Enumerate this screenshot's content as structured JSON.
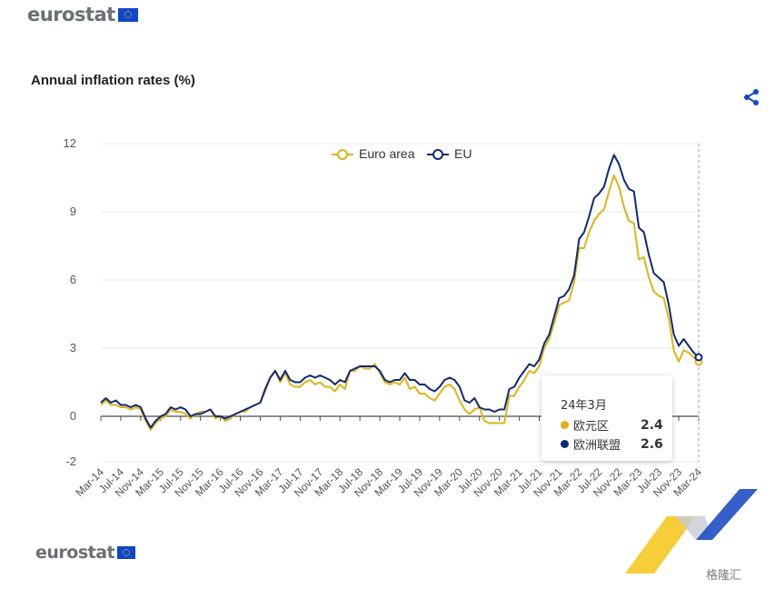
{
  "header": {
    "logo_text": "eurostat"
  },
  "footer": {
    "logo_text": "eurostat"
  },
  "watermark": {
    "text": "格隆汇"
  },
  "colors": {
    "euro_area": "#e0b315",
    "eu": "#0e2978",
    "grid": "#e6e8f0",
    "axis": "#4d4d4d"
  },
  "icons": {
    "share": "share-icon",
    "flag": "eu-flag-icon"
  },
  "chart_data": {
    "type": "line",
    "title": "Annual inflation rates (%)",
    "xlabel": "",
    "ylabel": "",
    "ylim": [
      -2,
      12
    ],
    "yticks": [
      -2,
      0,
      3,
      6,
      9,
      12
    ],
    "grid": true,
    "legend_position": "top",
    "x_tick_labels": [
      "Mar-14",
      "Jul-14",
      "Nov-14",
      "Mar-15",
      "Jul-15",
      "Nov-15",
      "Mar-16",
      "Jul-16",
      "Nov-16",
      "Mar-17",
      "Jul-17",
      "Nov-17",
      "Mar-18",
      "Jul-18",
      "Nov-18",
      "Mar-19",
      "Jul-19",
      "Nov-19",
      "Mar-20",
      "Jul-20",
      "Nov-20",
      "Mar-21",
      "Jul-21",
      "Nov-21",
      "Mar-22",
      "Jul-22",
      "Nov-22",
      "Mar-23",
      "Jul-23",
      "Nov-23",
      "Mar-24"
    ],
    "x": [
      "Mar-14",
      "Apr-14",
      "May-14",
      "Jun-14",
      "Jul-14",
      "Aug-14",
      "Sep-14",
      "Oct-14",
      "Nov-14",
      "Dec-14",
      "Jan-15",
      "Feb-15",
      "Mar-15",
      "Apr-15",
      "May-15",
      "Jun-15",
      "Jul-15",
      "Aug-15",
      "Sep-15",
      "Oct-15",
      "Nov-15",
      "Dec-15",
      "Jan-16",
      "Feb-16",
      "Mar-16",
      "Apr-16",
      "May-16",
      "Jun-16",
      "Jul-16",
      "Aug-16",
      "Sep-16",
      "Oct-16",
      "Nov-16",
      "Dec-16",
      "Jan-17",
      "Feb-17",
      "Mar-17",
      "Apr-17",
      "May-17",
      "Jun-17",
      "Jul-17",
      "Aug-17",
      "Sep-17",
      "Oct-17",
      "Nov-17",
      "Dec-17",
      "Jan-18",
      "Feb-18",
      "Mar-18",
      "Apr-18",
      "May-18",
      "Jun-18",
      "Jul-18",
      "Aug-18",
      "Sep-18",
      "Oct-18",
      "Nov-18",
      "Dec-18",
      "Jan-19",
      "Feb-19",
      "Mar-19",
      "Apr-19",
      "May-19",
      "Jun-19",
      "Jul-19",
      "Aug-19",
      "Sep-19",
      "Oct-19",
      "Nov-19",
      "Dec-19",
      "Jan-20",
      "Feb-20",
      "Mar-20",
      "Apr-20",
      "May-20",
      "Jun-20",
      "Jul-20",
      "Aug-20",
      "Sep-20",
      "Oct-20",
      "Nov-20",
      "Dec-20",
      "Jan-21",
      "Feb-21",
      "Mar-21",
      "Apr-21",
      "May-21",
      "Jun-21",
      "Jul-21",
      "Aug-21",
      "Sep-21",
      "Oct-21",
      "Nov-21",
      "Dec-21",
      "Jan-22",
      "Feb-22",
      "Mar-22",
      "Apr-22",
      "May-22",
      "Jun-22",
      "Jul-22",
      "Aug-22",
      "Sep-22",
      "Oct-22",
      "Nov-22",
      "Dec-22",
      "Jan-23",
      "Feb-23",
      "Mar-23",
      "Apr-23",
      "May-23",
      "Jun-23",
      "Jul-23",
      "Aug-23",
      "Sep-23",
      "Oct-23",
      "Nov-23",
      "Dec-23",
      "Jan-24",
      "Feb-24",
      "Mar-24"
    ],
    "series": [
      {
        "name": "Euro area",
        "color": "#e0b315",
        "values": [
          0.5,
          0.7,
          0.5,
          0.5,
          0.4,
          0.4,
          0.3,
          0.4,
          0.3,
          -0.2,
          -0.6,
          -0.3,
          -0.1,
          0.0,
          0.3,
          0.2,
          0.2,
          0.1,
          -0.1,
          0.1,
          0.2,
          0.2,
          0.3,
          -0.1,
          0.0,
          -0.2,
          -0.1,
          0.1,
          0.2,
          0.2,
          0.4,
          0.5,
          0.6,
          1.1,
          1.7,
          2.0,
          1.5,
          1.9,
          1.4,
          1.3,
          1.3,
          1.5,
          1.6,
          1.4,
          1.5,
          1.3,
          1.3,
          1.1,
          1.4,
          1.2,
          2.0,
          2.0,
          2.2,
          2.1,
          2.1,
          2.3,
          1.9,
          1.5,
          1.4,
          1.5,
          1.4,
          1.7,
          1.2,
          1.3,
          1.0,
          1.0,
          0.8,
          0.7,
          1.0,
          1.3,
          1.4,
          1.2,
          0.7,
          0.3,
          0.1,
          0.3,
          0.4,
          -0.2,
          -0.3,
          -0.3,
          -0.3,
          -0.3,
          0.9,
          0.9,
          1.3,
          1.6,
          2.0,
          1.9,
          2.2,
          3.0,
          3.4,
          4.1,
          4.9,
          5.0,
          5.1,
          5.9,
          7.4,
          7.4,
          8.1,
          8.6,
          8.9,
          9.1,
          9.9,
          10.6,
          10.1,
          9.2,
          8.6,
          8.5,
          6.9,
          7.0,
          6.1,
          5.5,
          5.3,
          5.2,
          4.3,
          2.9,
          2.4,
          2.9,
          2.8,
          2.6,
          2.4
        ]
      },
      {
        "name": "EU",
        "color": "#0e2978",
        "values": [
          0.6,
          0.8,
          0.6,
          0.7,
          0.5,
          0.5,
          0.4,
          0.5,
          0.4,
          -0.1,
          -0.5,
          -0.2,
          0.0,
          0.1,
          0.4,
          0.3,
          0.4,
          0.3,
          0.0,
          0.1,
          0.1,
          0.2,
          0.3,
          0.0,
          0.0,
          -0.1,
          0.0,
          0.1,
          0.2,
          0.3,
          0.4,
          0.5,
          0.6,
          1.2,
          1.7,
          2.0,
          1.6,
          2.0,
          1.6,
          1.5,
          1.5,
          1.7,
          1.8,
          1.7,
          1.8,
          1.7,
          1.6,
          1.4,
          1.6,
          1.5,
          2.0,
          2.1,
          2.2,
          2.2,
          2.2,
          2.2,
          2.0,
          1.6,
          1.5,
          1.6,
          1.6,
          1.9,
          1.6,
          1.6,
          1.4,
          1.4,
          1.2,
          1.1,
          1.3,
          1.6,
          1.7,
          1.6,
          1.3,
          0.7,
          0.6,
          0.8,
          0.4,
          0.3,
          0.3,
          0.2,
          0.3,
          0.3,
          1.2,
          1.3,
          1.7,
          2.0,
          2.3,
          2.2,
          2.5,
          3.2,
          3.6,
          4.4,
          5.2,
          5.3,
          5.6,
          6.2,
          7.8,
          8.1,
          8.8,
          9.6,
          9.8,
          10.1,
          10.9,
          11.5,
          11.1,
          10.4,
          10.0,
          9.9,
          8.3,
          8.1,
          7.1,
          6.3,
          6.1,
          5.9,
          4.9,
          3.6,
          3.1,
          3.4,
          3.1,
          2.8,
          2.6
        ]
      }
    ],
    "tooltip": {
      "date": "24年3月",
      "rows": [
        {
          "label": "欧元区",
          "value": "2.4",
          "color": "#e0b315"
        },
        {
          "label": "欧洲联盟",
          "value": "2.6",
          "color": "#0e2978"
        }
      ]
    }
  }
}
